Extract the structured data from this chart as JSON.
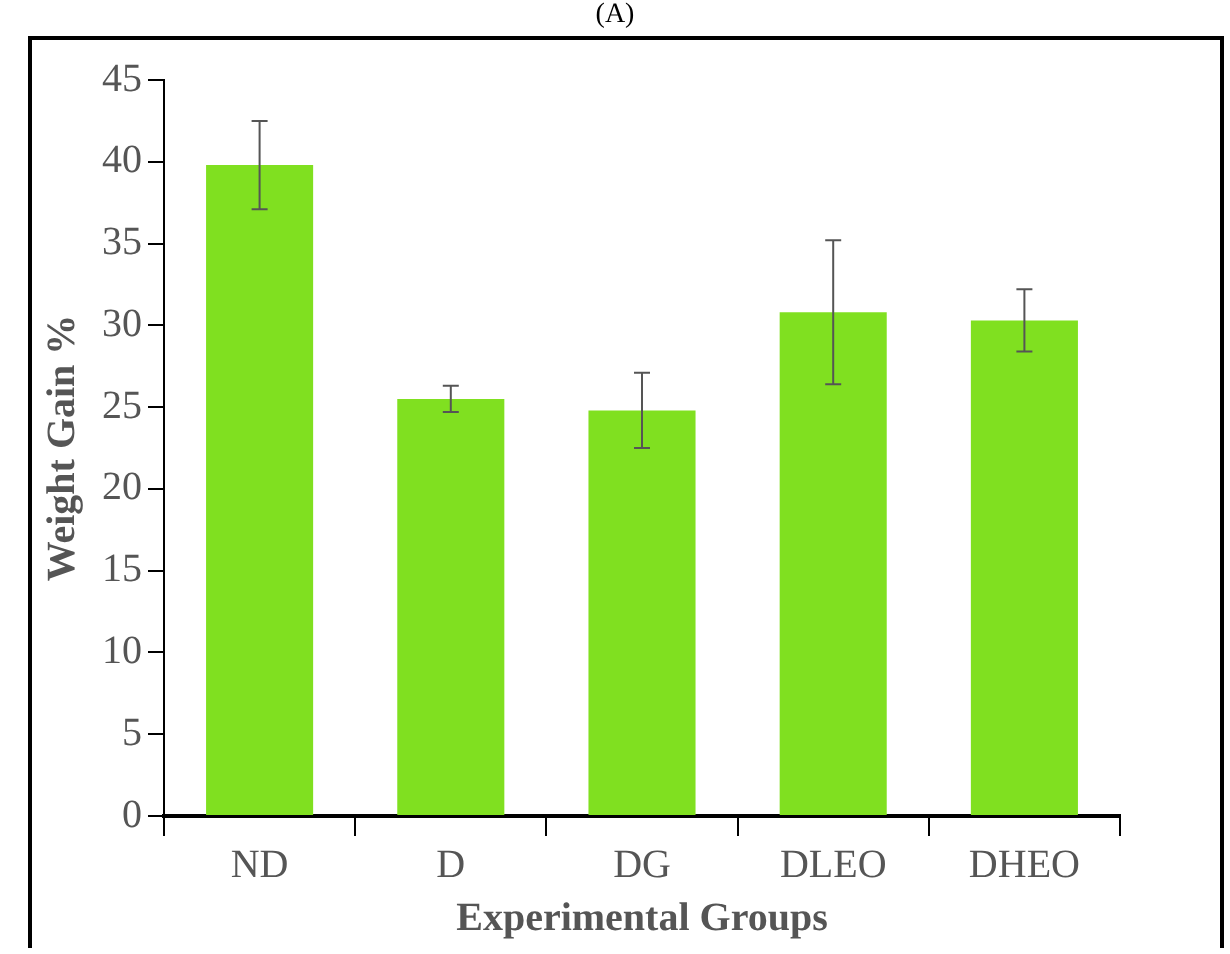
{
  "chart_data": {
    "type": "bar",
    "title": "(A)",
    "xlabel": "Experimental Groups",
    "ylabel": "Weight Gain %",
    "categories": [
      "ND",
      "D",
      "DG",
      "DLEO",
      "DHEO"
    ],
    "values": [
      39.8,
      25.5,
      24.8,
      30.8,
      30.3
    ],
    "errors": [
      2.7,
      0.8,
      2.3,
      4.4,
      1.9
    ],
    "color": "#80e020",
    "ylim": [
      0,
      45
    ],
    "yticks": [
      0,
      5,
      10,
      15,
      20,
      25,
      30,
      35,
      40,
      45
    ],
    "grid": false,
    "legend": false
  }
}
